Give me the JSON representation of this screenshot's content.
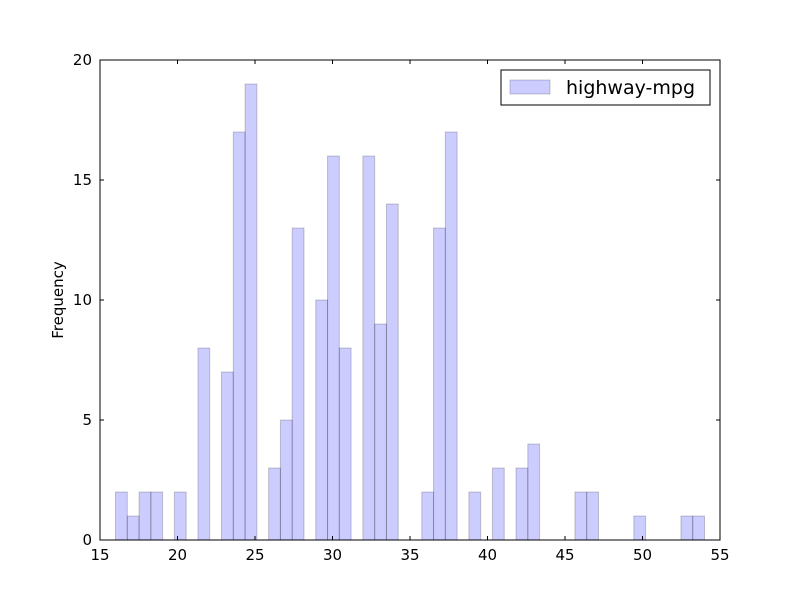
{
  "chart_data": {
    "type": "bar",
    "title": "",
    "xlabel": "",
    "ylabel": "Frequency",
    "xlim": [
      15,
      55
    ],
    "ylim": [
      0,
      20
    ],
    "xticks": [
      15,
      20,
      25,
      30,
      35,
      40,
      45,
      50,
      55
    ],
    "yticks": [
      0,
      5,
      10,
      15,
      20
    ],
    "grid": false,
    "legend": {
      "position": "top-right"
    },
    "series": [
      {
        "name": "highway-mpg",
        "color": "#0000ff",
        "opacity": 0.2,
        "bin_width": 0.76,
        "bins": [
          {
            "x0": 16.0,
            "count": 2
          },
          {
            "x0": 16.76,
            "count": 1
          },
          {
            "x0": 17.52,
            "count": 2
          },
          {
            "x0": 18.28,
            "count": 2
          },
          {
            "x0": 19.8,
            "count": 2
          },
          {
            "x0": 21.32,
            "count": 8
          },
          {
            "x0": 22.84,
            "count": 7
          },
          {
            "x0": 23.6,
            "count": 17
          },
          {
            "x0": 24.36,
            "count": 19
          },
          {
            "x0": 25.88,
            "count": 3
          },
          {
            "x0": 26.64,
            "count": 5
          },
          {
            "x0": 27.4,
            "count": 13
          },
          {
            "x0": 28.92,
            "count": 10
          },
          {
            "x0": 29.68,
            "count": 16
          },
          {
            "x0": 30.44,
            "count": 8
          },
          {
            "x0": 31.96,
            "count": 16
          },
          {
            "x0": 32.72,
            "count": 9
          },
          {
            "x0": 33.48,
            "count": 14
          },
          {
            "x0": 35.76,
            "count": 2
          },
          {
            "x0": 36.52,
            "count": 13
          },
          {
            "x0": 37.28,
            "count": 17
          },
          {
            "x0": 38.8,
            "count": 2
          },
          {
            "x0": 40.32,
            "count": 3
          },
          {
            "x0": 41.84,
            "count": 3
          },
          {
            "x0": 42.6,
            "count": 4
          },
          {
            "x0": 45.64,
            "count": 2
          },
          {
            "x0": 46.4,
            "count": 2
          },
          {
            "x0": 49.44,
            "count": 1
          },
          {
            "x0": 52.48,
            "count": 1
          },
          {
            "x0": 53.24,
            "count": 1
          }
        ]
      }
    ]
  }
}
